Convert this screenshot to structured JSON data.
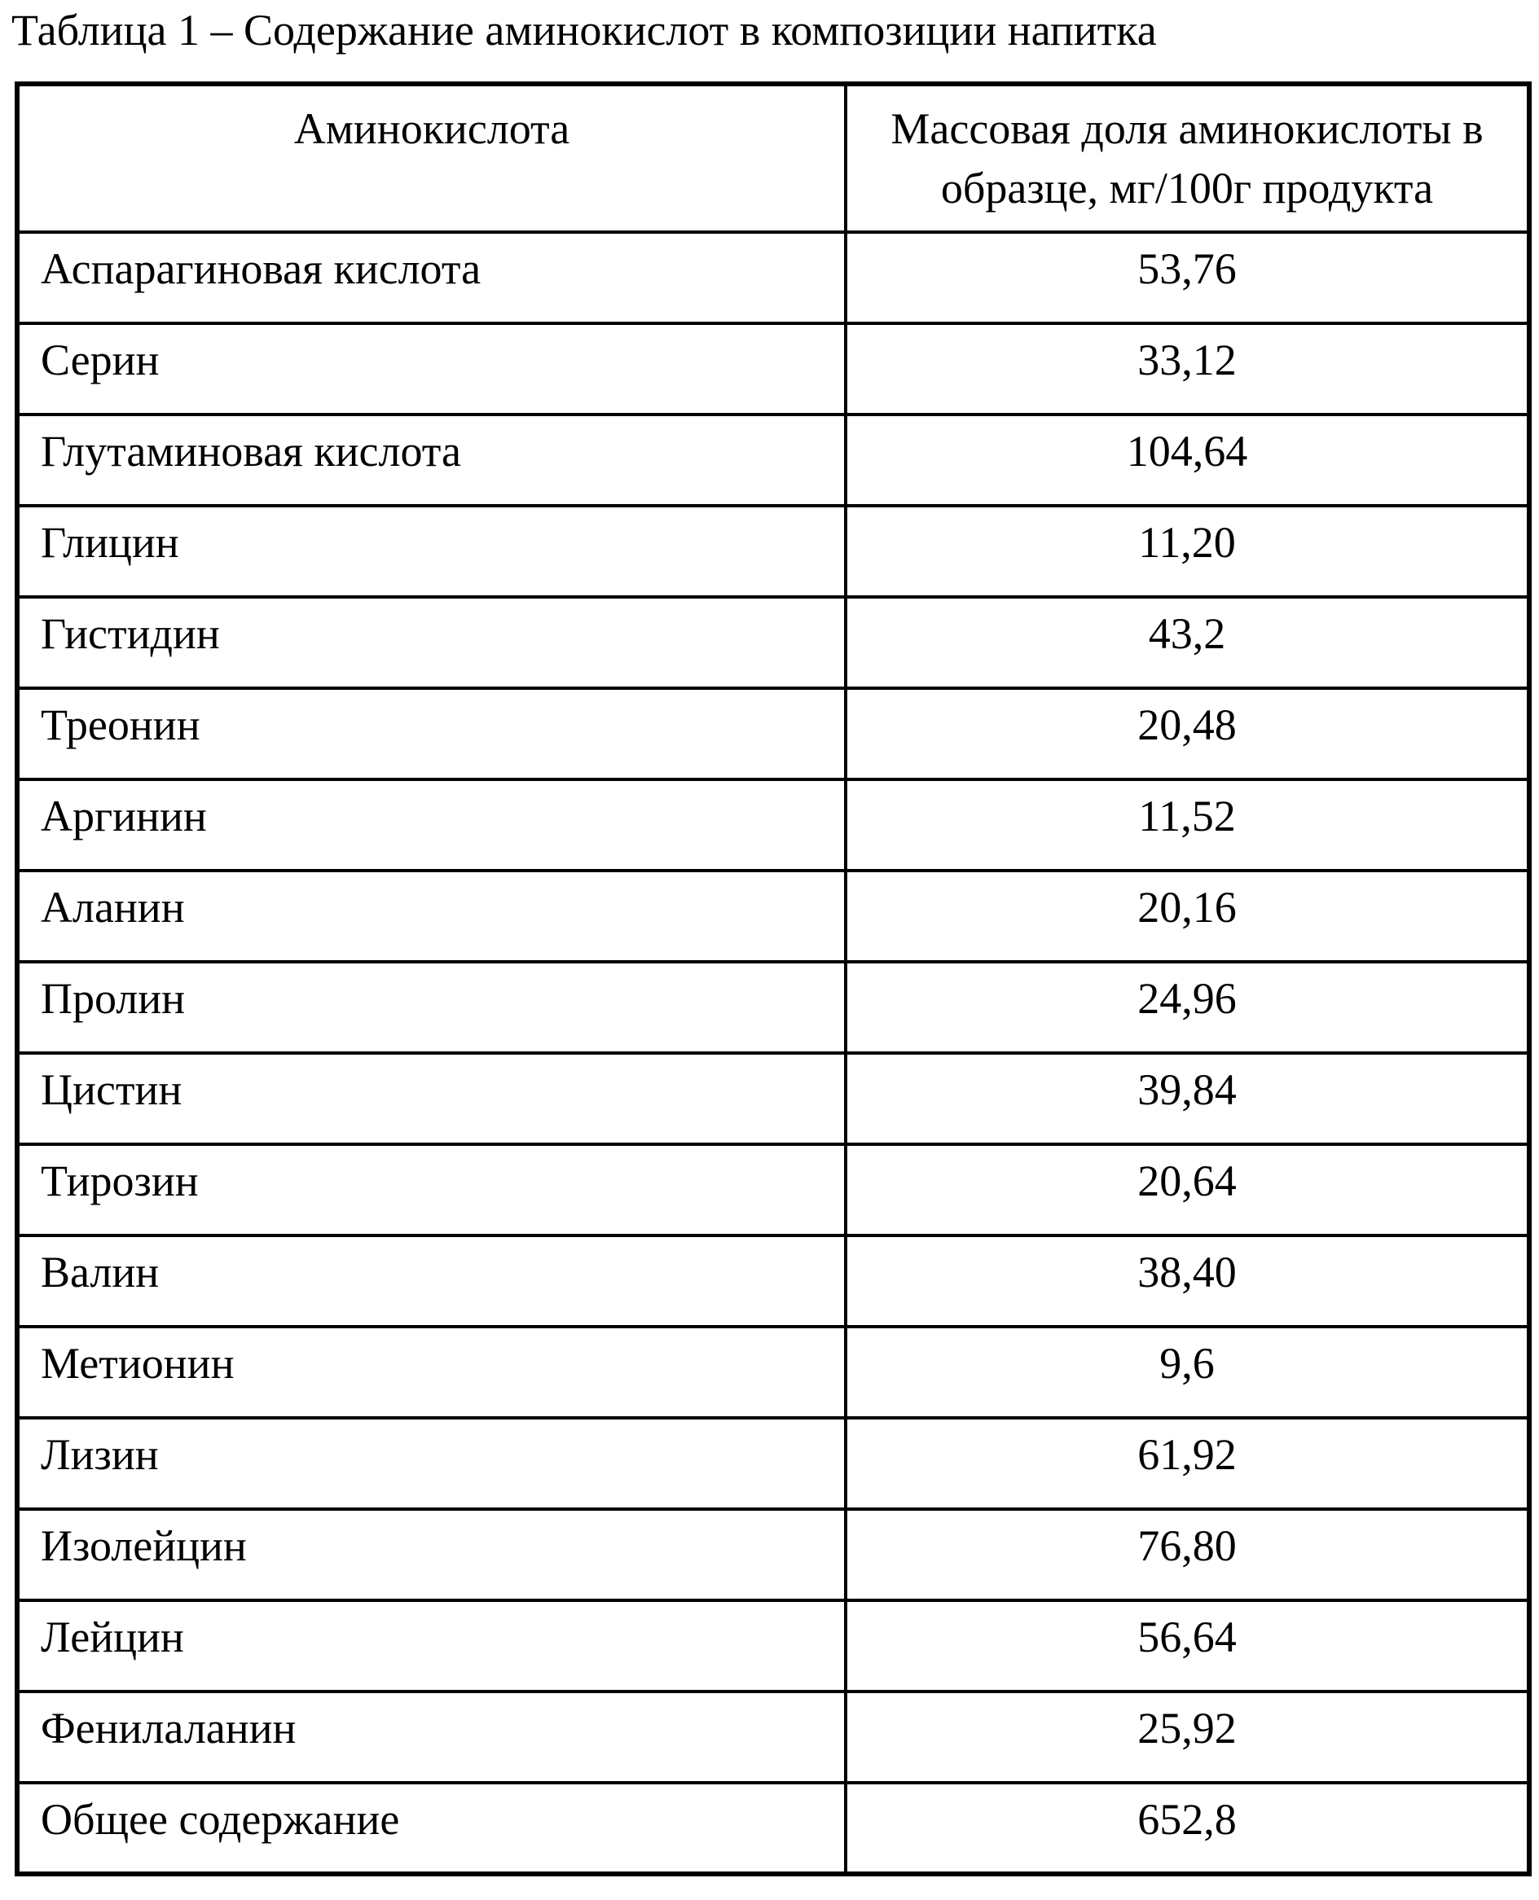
{
  "caption": "Таблица 1 – Содержание аминокислот в композиции напитка",
  "table": {
    "header": {
      "col1": "Аминокислота",
      "col2_line1": "Массовая доля аминокислоты в",
      "col2_line2": "образце, мг/100г продукта"
    },
    "rows": [
      {
        "name": "Аспарагиновая кислота",
        "value": "53,76"
      },
      {
        "name": "Серин",
        "value": "33,12"
      },
      {
        "name": "Глутаминовая кислота",
        "value": "104,64"
      },
      {
        "name": "Глицин",
        "value": "11,20"
      },
      {
        "name": "Гистидин",
        "value": "43,2"
      },
      {
        "name": "Треонин",
        "value": "20,48"
      },
      {
        "name": "Аргинин",
        "value": "11,52"
      },
      {
        "name": "Аланин",
        "value": "20,16"
      },
      {
        "name": "Пролин",
        "value": "24,96"
      },
      {
        "name": "Цистин",
        "value": "39,84"
      },
      {
        "name": "Тирозин",
        "value": "20,64"
      },
      {
        "name": "Валин",
        "value": "38,40"
      },
      {
        "name": "Метионин",
        "value": "9,6"
      },
      {
        "name": "Лизин",
        "value": "61,92"
      },
      {
        "name": "Изолейцин",
        "value": "76,80"
      },
      {
        "name": "Лейцин",
        "value": "56,64"
      },
      {
        "name": "Фенилаланин",
        "value": "25,92"
      },
      {
        "name": "Общее содержание",
        "value": "652,8"
      }
    ]
  },
  "colors": {
    "page_background": "#ffffff",
    "text": "#000000",
    "border": "#000000"
  },
  "chart_data": {
    "type": "table",
    "title": "Таблица 1 – Содержание аминокислот в композиции напитка",
    "columns": [
      "Аминокислота",
      "Массовая доля аминокислоты в образце, мг/100г продукта"
    ],
    "categories": [
      "Аспарагиновая кислота",
      "Серин",
      "Глутаминовая кислота",
      "Глицин",
      "Гистидин",
      "Треонин",
      "Аргинин",
      "Аланин",
      "Пролин",
      "Цистин",
      "Тирозин",
      "Валин",
      "Метионин",
      "Лизин",
      "Изолейцин",
      "Лейцин",
      "Фенилаланин",
      "Общее содержание"
    ],
    "values": [
      53.76,
      33.12,
      104.64,
      11.2,
      43.2,
      20.48,
      11.52,
      20.16,
      24.96,
      39.84,
      20.64,
      38.4,
      9.6,
      61.92,
      76.8,
      56.64,
      25.92,
      652.8
    ]
  }
}
